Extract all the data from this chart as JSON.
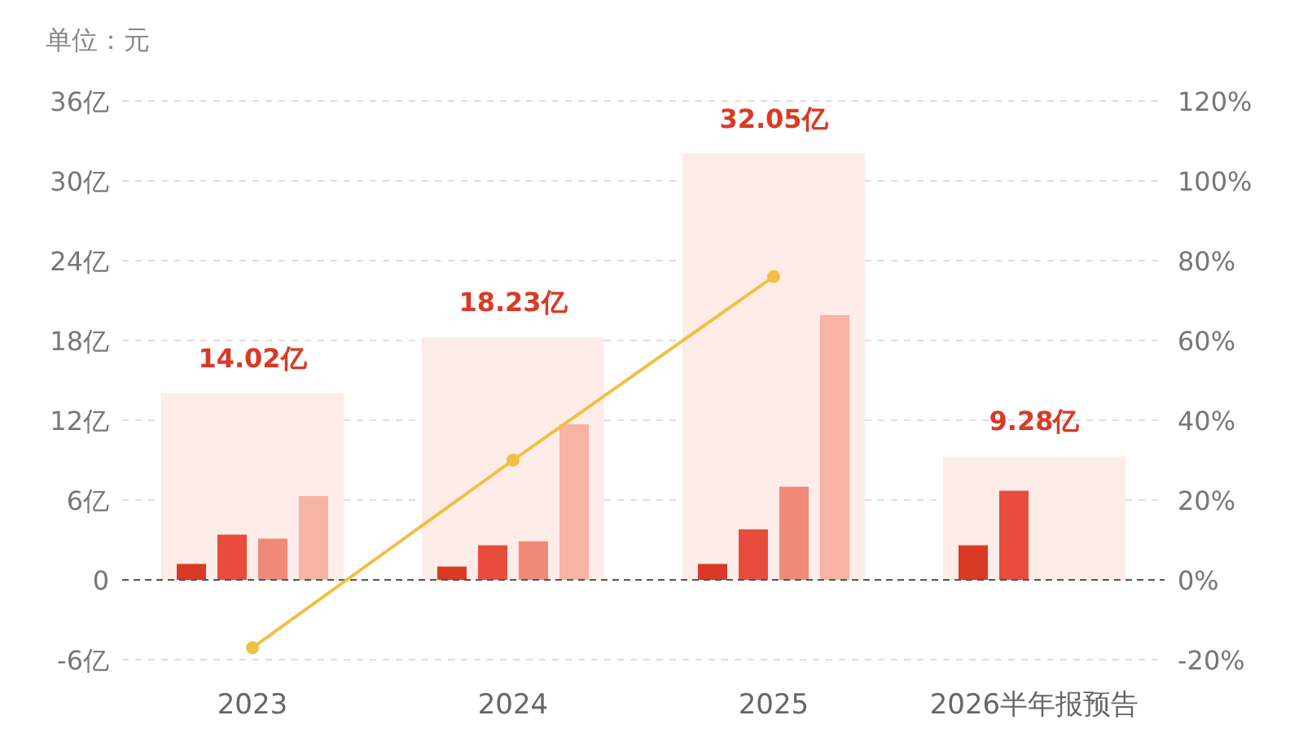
{
  "chart_data": {
    "type": "bar",
    "annotations": [
      "单位：元"
    ],
    "categories": [
      "2023",
      "2024",
      "2025",
      "2026半年报预告"
    ],
    "series": [
      {
        "color": "#fdece8",
        "values": [
          14.02,
          18.23,
          32.05,
          9.28
        ],
        "value_labels": [
          "14.02亿",
          "18.23亿",
          "32.05亿",
          "9.28亿"
        ]
      },
      {
        "color": "#d93a26",
        "values": [
          1.2,
          1.0,
          1.2,
          2.6
        ]
      },
      {
        "color": "#e84c3d",
        "values": [
          3.4,
          2.6,
          3.8,
          6.7
        ]
      },
      {
        "color": "#ef8a78",
        "values": [
          3.1,
          2.9,
          7.0,
          null
        ]
      },
      {
        "color": "#f7b3a3",
        "values": [
          6.3,
          11.7,
          19.9,
          null
        ]
      },
      {
        "type": "line",
        "axis": "y2",
        "color": "#f0c040",
        "marker": "circle",
        "values": [
          -17,
          30,
          76,
          null
        ]
      }
    ],
    "ylim": [
      -6,
      36
    ],
    "yticks": [
      {
        "value": -6,
        "label": "-6亿"
      },
      {
        "value": 0,
        "label": "0"
      },
      {
        "value": 6,
        "label": "6亿"
      },
      {
        "value": 12,
        "label": "12亿"
      },
      {
        "value": 18,
        "label": "18亿"
      },
      {
        "value": 24,
        "label": "24亿"
      },
      {
        "value": 30,
        "label": "30亿"
      },
      {
        "value": 36,
        "label": "36亿"
      }
    ],
    "y2lim": [
      -20,
      120
    ],
    "y2ticks": [
      {
        "value": -20,
        "label": "-20%"
      },
      {
        "value": 0,
        "label": "0%"
      },
      {
        "value": 20,
        "label": "20%"
      },
      {
        "value": 40,
        "label": "40%"
      },
      {
        "value": 60,
        "label": "60%"
      },
      {
        "value": 80,
        "label": "80%"
      },
      {
        "value": 100,
        "label": "100%"
      },
      {
        "value": 120,
        "label": "120%"
      }
    ],
    "ref_lines": [
      {
        "axis": "y",
        "value": 0,
        "color": "#555555",
        "line_style": "dashed"
      }
    ],
    "grid": "y"
  }
}
